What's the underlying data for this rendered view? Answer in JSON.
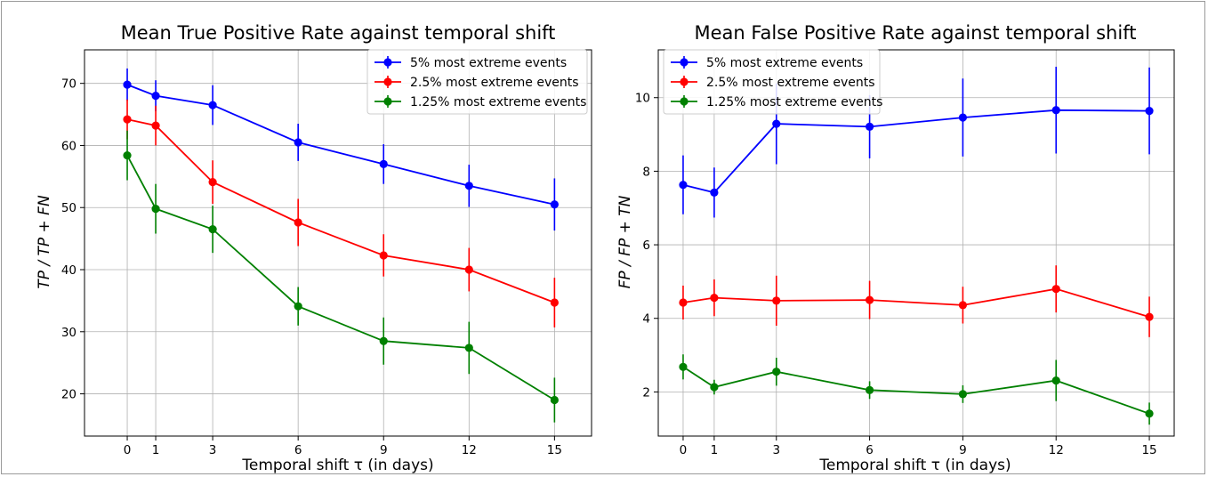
{
  "chart_data": [
    {
      "type": "line",
      "title": "Mean True Positive Rate against temporal shift",
      "xlabel": "Temporal shift τ (in days)",
      "ylabel": "TP / TP + FN",
      "x": [
        0,
        1,
        3,
        6,
        9,
        12,
        15
      ],
      "xticks": [
        "0",
        "1",
        "3",
        "6",
        "9",
        "12",
        "15"
      ],
      "yticks": [
        "20",
        "30",
        "40",
        "50",
        "60",
        "70"
      ],
      "xlim": [
        -1.5,
        16.3
      ],
      "ylim": [
        13.2,
        75.4
      ],
      "grid": true,
      "legend_position": "top-right",
      "series": [
        {
          "name": "5% most extreme events",
          "color": "#0000ff",
          "values": [
            69.8,
            68.0,
            66.5,
            60.5,
            57.0,
            53.5,
            50.5
          ],
          "errors": [
            2.6,
            2.5,
            3.2,
            3.0,
            3.2,
            3.4,
            4.2
          ]
        },
        {
          "name": "2.5% most extreme events",
          "color": "#ff0000",
          "values": [
            64.2,
            63.2,
            54.1,
            47.6,
            42.3,
            40.0,
            34.7
          ],
          "errors": [
            3.2,
            3.2,
            3.5,
            3.8,
            3.4,
            3.5,
            4.0
          ]
        },
        {
          "name": "1.25% most extreme events",
          "color": "#008000",
          "values": [
            58.4,
            49.8,
            46.5,
            34.1,
            28.5,
            27.4,
            19.0
          ],
          "errors": [
            4.0,
            4.0,
            3.8,
            3.1,
            3.8,
            4.2,
            3.6
          ]
        }
      ]
    },
    {
      "type": "line",
      "title": "Mean False Positive Rate against temporal shift",
      "xlabel": "Temporal shift τ (in days)",
      "ylabel": "FP / FP + TN",
      "x": [
        0,
        1,
        3,
        6,
        9,
        12,
        15
      ],
      "xticks": [
        "0",
        "1",
        "3",
        "6",
        "9",
        "12",
        "15"
      ],
      "yticks": [
        "2",
        "4",
        "6",
        "8",
        "10"
      ],
      "xlim": [
        -0.8,
        15.8
      ],
      "ylim": [
        0.8,
        11.3
      ],
      "grid": true,
      "legend_position": "top-left",
      "series": [
        {
          "name": "5% most extreme events",
          "color": "#0000ff",
          "values": [
            7.63,
            7.42,
            9.29,
            9.21,
            9.46,
            9.66,
            9.64
          ],
          "errors": [
            0.8,
            0.68,
            1.1,
            0.86,
            1.06,
            1.18,
            1.18
          ]
        },
        {
          "name": "2.5% most extreme events",
          "color": "#ff0000",
          "values": [
            4.43,
            4.56,
            4.48,
            4.5,
            4.36,
            4.8,
            4.04
          ],
          "errors": [
            0.46,
            0.5,
            0.68,
            0.52,
            0.5,
            0.64,
            0.55
          ]
        },
        {
          "name": "1.25% most extreme events",
          "color": "#008000",
          "values": [
            2.68,
            2.13,
            2.55,
            2.05,
            1.94,
            2.31,
            1.41
          ],
          "errors": [
            0.34,
            0.2,
            0.38,
            0.24,
            0.24,
            0.56,
            0.3
          ]
        }
      ]
    }
  ]
}
